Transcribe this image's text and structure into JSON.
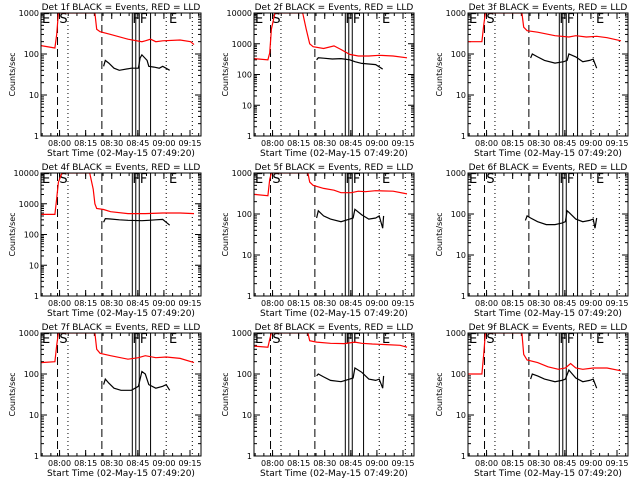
{
  "figure": {
    "colors": {
      "events": "#000000",
      "lld": "#ff0000",
      "frame": "#000000",
      "background": "#ffffff"
    }
  },
  "chart_data": [
    {
      "type": "line",
      "title": "Det 1f BLACK = Events, RED = LLD",
      "xlabel": "Start Time (02-May-15 07:49:20)",
      "ylabel": "Counts/sec",
      "yscale": "log",
      "ylim": [
        1,
        1000
      ],
      "ytick_labels": [
        "1",
        "10",
        "100",
        "1000"
      ],
      "xlim_minutes_from_start": [
        0,
        60
      ],
      "xtick_labels": [
        "08:00",
        "08:15",
        "08:30",
        "08:45",
        "09:00",
        "09:15"
      ],
      "series": [
        {
          "name": "LLD",
          "color": "red",
          "x": [
            0,
            8,
            9,
            10,
            31,
            32,
            34,
            40,
            50,
            58,
            60,
            63,
            66,
            70,
            80,
            86,
            88
          ],
          "y": [
            160,
            140,
            300,
            1000,
            1000,
            400,
            350,
            300,
            230,
            200,
            210,
            230,
            200,
            210,
            220,
            200,
            170
          ]
        },
        {
          "name": "Events",
          "color": "black",
          "x": [
            36,
            37,
            39,
            42,
            45,
            52,
            56,
            57,
            58,
            61,
            62,
            65,
            68,
            70,
            74
          ],
          "y": [
            50,
            70,
            60,
            45,
            40,
            45,
            45,
            80,
            95,
            70,
            50,
            48,
            45,
            50,
            40
          ]
        }
      ],
      "markers": [
        "E",
        "S",
        "FF",
        "E"
      ]
    },
    {
      "type": "line",
      "title": "Det 2f BLACK = Events, RED = LLD",
      "xlabel": "Start Time (02-May-15 07:49:20)",
      "ylabel": "Counts/sec",
      "yscale": "log",
      "ylim": [
        1,
        10000
      ],
      "ytick_labels": [
        "1",
        "10",
        "100",
        "1000",
        "10000"
      ],
      "xlim_minutes_from_start": [
        0,
        60
      ],
      "xtick_labels": [
        "08:00",
        "08:15",
        "08:30",
        "08:45",
        "09:00",
        "09:15"
      ],
      "series": [
        {
          "name": "LLD",
          "color": "red",
          "x": [
            0,
            8,
            9,
            10,
            12,
            28,
            30,
            32,
            34,
            40,
            46,
            50,
            55,
            60,
            66,
            72,
            80,
            88
          ],
          "y": [
            330,
            300,
            500,
            3000,
            10000,
            10000,
            3000,
            1000,
            800,
            700,
            850,
            650,
            450,
            400,
            400,
            420,
            400,
            350
          ]
        },
        {
          "name": "Events",
          "color": "black",
          "x": [
            36,
            37,
            40,
            45,
            50,
            55,
            58,
            62,
            66,
            70,
            74
          ],
          "y": [
            300,
            350,
            340,
            320,
            330,
            300,
            260,
            230,
            220,
            210,
            150
          ]
        }
      ],
      "markers": [
        "E",
        "S",
        "FF",
        "E"
      ]
    },
    {
      "type": "line",
      "title": "Det 3f BLACK = Events, RED = LLD",
      "xlabel": "Start Time (02-May-15 07:49:20)",
      "ylabel": "Counts/sec",
      "yscale": "log",
      "ylim": [
        1,
        1000
      ],
      "ytick_labels": [
        "1",
        "10",
        "100",
        "1000"
      ],
      "xlim_minutes_from_start": [
        0,
        60
      ],
      "xtick_labels": [
        "08:00",
        "08:15",
        "08:30",
        "08:45",
        "09:00",
        "09:15"
      ],
      "series": [
        {
          "name": "LLD",
          "color": "red",
          "x": [
            0,
            8,
            9,
            10,
            31,
            32,
            34,
            40,
            50,
            58,
            62,
            68,
            74,
            80,
            88
          ],
          "y": [
            200,
            200,
            500,
            1000,
            1000,
            450,
            370,
            340,
            280,
            260,
            280,
            260,
            270,
            250,
            210
          ]
        },
        {
          "name": "Events",
          "color": "black",
          "x": [
            36,
            37,
            40,
            44,
            50,
            55,
            57,
            58,
            62,
            66,
            70,
            72,
            74
          ],
          "y": [
            80,
            100,
            85,
            70,
            60,
            65,
            70,
            100,
            85,
            65,
            70,
            75,
            45
          ]
        }
      ],
      "markers": [
        "E",
        "S",
        "FF",
        "E"
      ]
    },
    {
      "type": "line",
      "title": "Det 4f BLACK = Events, RED = LLD",
      "xlabel": "Start Time (02-May-15 07:49:20)",
      "ylabel": "Counts/sec",
      "yscale": "log",
      "ylim": [
        1,
        10000
      ],
      "ytick_labels": [
        "1",
        "10",
        "100",
        "1000",
        "10000"
      ],
      "xlim_minutes_from_start": [
        0,
        60
      ],
      "xtick_labels": [
        "08:00",
        "08:15",
        "08:30",
        "08:45",
        "09:00",
        "09:15"
      ],
      "series": [
        {
          "name": "LLD",
          "color": "red",
          "x": [
            0,
            8,
            9,
            10,
            12,
            28,
            30,
            31,
            32,
            36,
            40,
            50,
            60,
            70,
            80,
            88
          ],
          "y": [
            450,
            450,
            1500,
            5000,
            10000,
            10000,
            3000,
            1000,
            700,
            650,
            550,
            480,
            480,
            500,
            500,
            480
          ]
        },
        {
          "name": "Events",
          "color": "black",
          "x": [
            36,
            37,
            40,
            45,
            50,
            58,
            62,
            66,
            70,
            74
          ],
          "y": [
            250,
            330,
            320,
            300,
            290,
            280,
            290,
            300,
            310,
            200
          ]
        }
      ],
      "markers": [
        "E",
        "S",
        "FF",
        "E"
      ]
    },
    {
      "type": "line",
      "title": "Det 5f BLACK = Events, RED = LLD",
      "xlabel": "Start Time (02-May-15 07:49:20)",
      "ylabel": "Counts/sec",
      "yscale": "log",
      "ylim": [
        1,
        1000
      ],
      "ytick_labels": [
        "1",
        "10",
        "100",
        "1000"
      ],
      "xlim_minutes_from_start": [
        0,
        60
      ],
      "xtick_labels": [
        "08:00",
        "08:15",
        "08:30",
        "08:45",
        "09:00",
        "09:15"
      ],
      "series": [
        {
          "name": "LLD",
          "color": "red",
          "x": [
            0,
            8,
            9,
            10,
            31,
            32,
            34,
            40,
            46,
            50,
            56,
            60,
            64,
            70,
            80,
            88
          ],
          "y": [
            300,
            280,
            700,
            1000,
            1000,
            600,
            500,
            420,
            380,
            330,
            330,
            360,
            350,
            370,
            360,
            310
          ]
        },
        {
          "name": "Events",
          "color": "black",
          "x": [
            36,
            37,
            40,
            44,
            50,
            55,
            57,
            58,
            62,
            66,
            70,
            72,
            74,
            74.5
          ],
          "y": [
            80,
            120,
            90,
            75,
            65,
            75,
            80,
            130,
            95,
            75,
            80,
            90,
            45,
            90
          ]
        }
      ],
      "markers": [
        "E",
        "S",
        "FF",
        "E"
      ]
    },
    {
      "type": "line",
      "title": "Det 6f BLACK = Events, RED = LLD",
      "xlabel": "Start Time (02-May-15 07:49:20)",
      "ylabel": "Counts/sec",
      "yscale": "log",
      "ylim": [
        1,
        1000
      ],
      "ytick_labels": [
        "1",
        "10",
        "100",
        "1000"
      ],
      "xlim_minutes_from_start": [
        0,
        60
      ],
      "xtick_labels": [
        "08:00",
        "08:15",
        "08:30",
        "08:45",
        "09:00",
        "09:15"
      ],
      "series": [
        {
          "name": "Events",
          "color": "black",
          "x": [
            33,
            34,
            36,
            40,
            45,
            50,
            54,
            56,
            57,
            58,
            62,
            66,
            70,
            72,
            73,
            74
          ],
          "y": [
            70,
            90,
            80,
            65,
            55,
            55,
            60,
            65,
            120,
            110,
            75,
            65,
            70,
            75,
            45,
            80
          ]
        }
      ],
      "markers": [
        "E",
        "S",
        "FF",
        "E"
      ]
    },
    {
      "type": "line",
      "title": "Det 7f BLACK = Events, RED = LLD",
      "xlabel": "Start Time (02-May-15 07:49:20)",
      "ylabel": "Counts/sec",
      "yscale": "log",
      "ylim": [
        1,
        1000
      ],
      "ytick_labels": [
        "1",
        "10",
        "100",
        "1000"
      ],
      "xlim_minutes_from_start": [
        0,
        60
      ],
      "xtick_labels": [
        "08:00",
        "08:15",
        "08:30",
        "08:45",
        "09:00",
        "09:15"
      ],
      "series": [
        {
          "name": "LLD",
          "color": "red",
          "x": [
            0,
            8,
            9,
            10,
            31,
            32,
            34,
            40,
            50,
            56,
            60,
            66,
            72,
            80,
            88
          ],
          "y": [
            190,
            200,
            500,
            1000,
            1000,
            400,
            320,
            280,
            230,
            250,
            280,
            250,
            260,
            240,
            190
          ]
        },
        {
          "name": "Events",
          "color": "black",
          "x": [
            36,
            37,
            39,
            42,
            46,
            52,
            56,
            58,
            60,
            62,
            66,
            70,
            72,
            74
          ],
          "y": [
            55,
            75,
            60,
            45,
            40,
            40,
            50,
            115,
            100,
            55,
            45,
            50,
            55,
            40
          ]
        }
      ],
      "markers": [
        "E",
        "S",
        "FF",
        "E"
      ]
    },
    {
      "type": "line",
      "title": "Det 8f BLACK = Events, RED = LLD",
      "xlabel": "Start Time (02-May-15 07:49:20)",
      "ylabel": "Counts/sec",
      "yscale": "log",
      "ylim": [
        1,
        1000
      ],
      "ytick_labels": [
        "1",
        "10",
        "100",
        "1000"
      ],
      "xlim_minutes_from_start": [
        0,
        60
      ],
      "xtick_labels": [
        "08:00",
        "08:15",
        "08:30",
        "08:45",
        "09:00",
        "09:15"
      ],
      "series": [
        {
          "name": "LLD",
          "color": "red",
          "x": [
            0,
            8,
            9,
            10,
            31,
            32,
            36,
            44,
            52,
            58,
            62,
            68,
            76,
            84,
            88
          ],
          "y": [
            480,
            450,
            700,
            1000,
            1000,
            650,
            600,
            560,
            550,
            600,
            560,
            540,
            520,
            500,
            450
          ]
        },
        {
          "name": "Events",
          "color": "black",
          "x": [
            36,
            37,
            40,
            44,
            50,
            55,
            57,
            58,
            62,
            66,
            70,
            72,
            74,
            74.5
          ],
          "y": [
            90,
            100,
            85,
            70,
            65,
            75,
            80,
            140,
            110,
            75,
            70,
            75,
            45,
            90
          ]
        }
      ],
      "markers": [
        "E",
        "S",
        "FF",
        "E"
      ]
    },
    {
      "type": "line",
      "title": "Det 9f BLACK = Events, RED = LLD",
      "xlabel": "Start Time (02-May-15 07:49:20)",
      "ylabel": "Counts/sec",
      "yscale": "log",
      "ylim": [
        1,
        1000
      ],
      "ytick_labels": [
        "1",
        "10",
        "100",
        "1000"
      ],
      "xlim_minutes_from_start": [
        0,
        60
      ],
      "xtick_labels": [
        "08:00",
        "08:15",
        "08:30",
        "08:45",
        "09:00",
        "09:15"
      ],
      "series": [
        {
          "name": "LLD",
          "color": "red",
          "x": [
            0,
            8,
            9,
            10,
            31,
            32,
            34,
            40,
            46,
            52,
            56,
            59,
            62,
            66,
            72,
            80,
            88
          ],
          "y": [
            100,
            100,
            300,
            1000,
            1000,
            300,
            220,
            190,
            150,
            130,
            140,
            180,
            140,
            130,
            140,
            140,
            120
          ]
        },
        {
          "name": "Events",
          "color": "black",
          "x": [
            36,
            37,
            40,
            44,
            50,
            54,
            56,
            58,
            60,
            62,
            66,
            70,
            72,
            74
          ],
          "y": [
            75,
            100,
            90,
            75,
            65,
            70,
            75,
            125,
            100,
            80,
            65,
            70,
            75,
            45
          ]
        }
      ],
      "markers": [
        "E",
        "S",
        "FF",
        "E"
      ]
    }
  ]
}
